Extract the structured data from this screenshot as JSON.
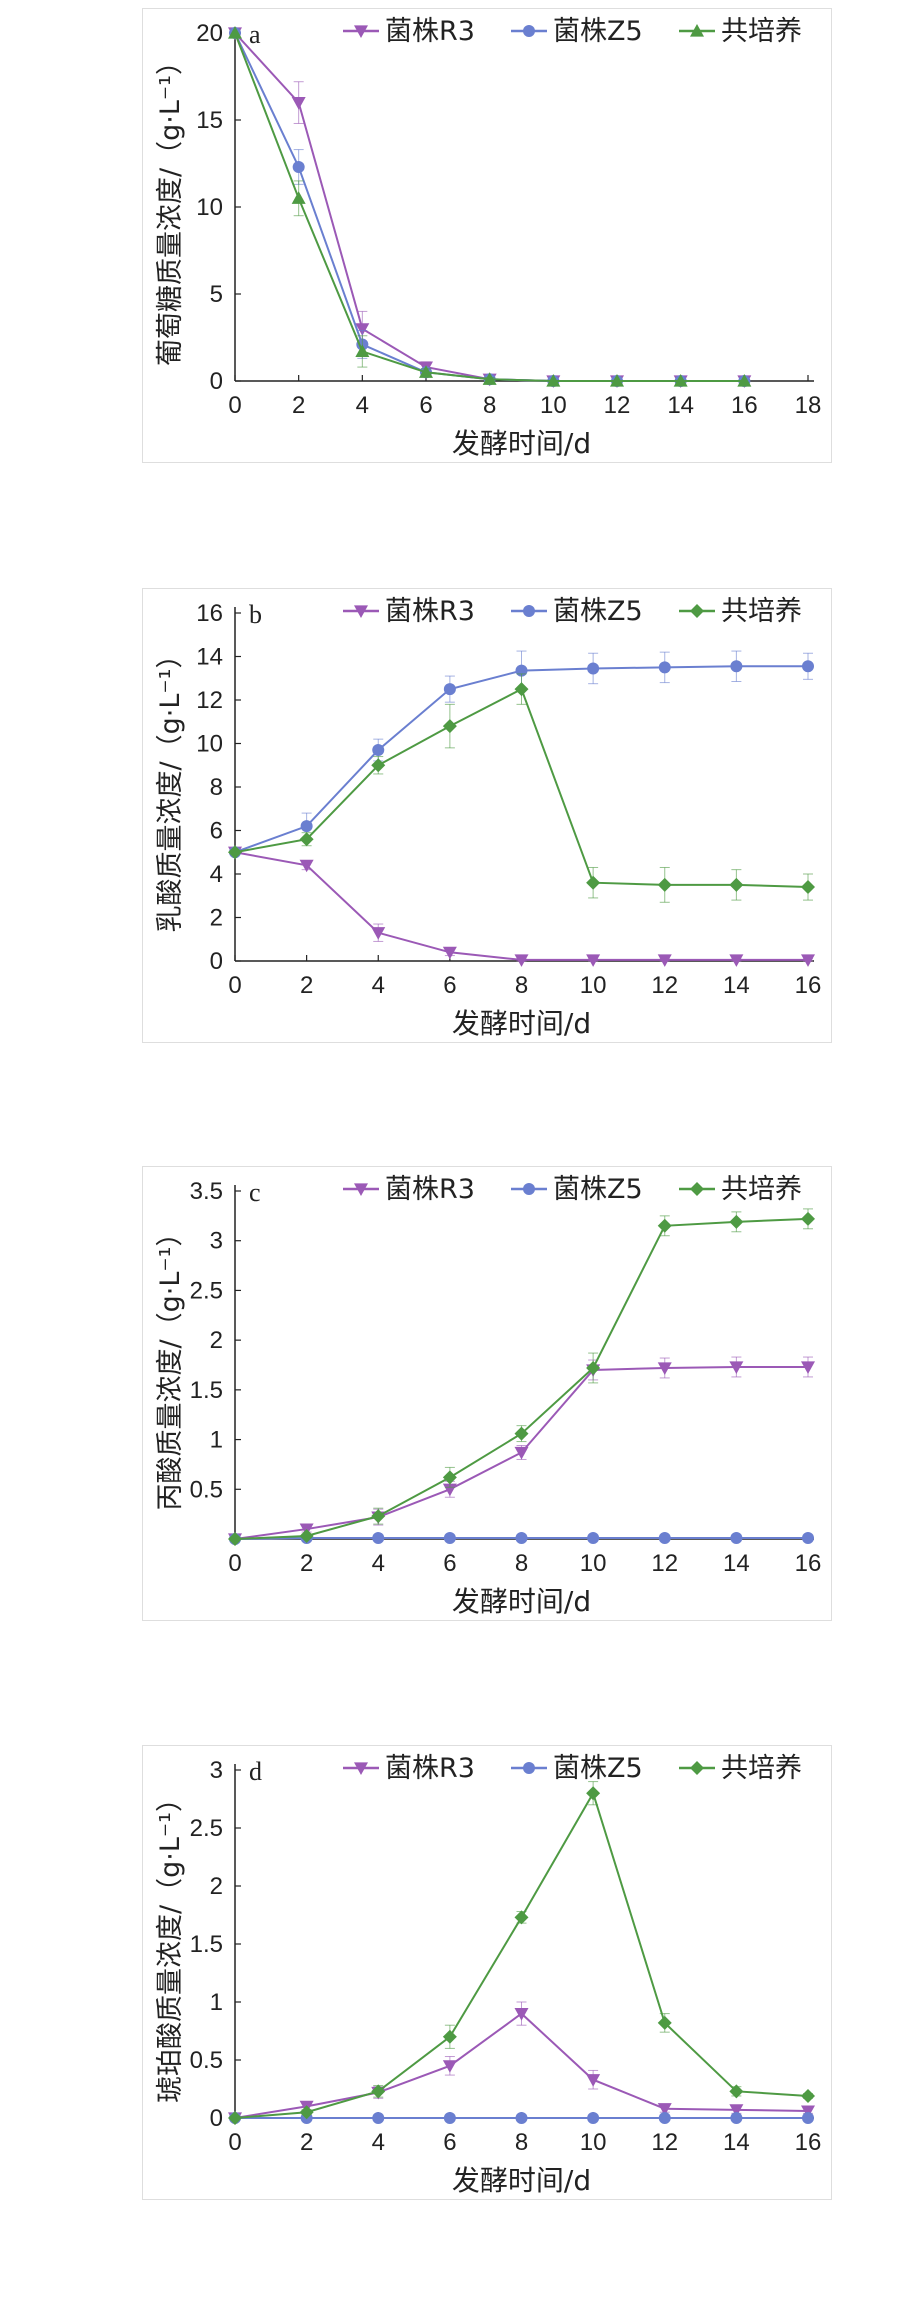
{
  "colors": {
    "R3": "#9b59b6",
    "Z5": "#6a7fd0",
    "co": "#4e9a43"
  },
  "chart_data": [
    {
      "type": "line",
      "panel_label": "a",
      "xlabel": "发酵时间/d",
      "ylabel": "葡萄糖质量浓度/（g·L⁻¹）",
      "xlim": [
        0,
        18
      ],
      "ylim": [
        0,
        20
      ],
      "xticks": [
        0,
        2,
        4,
        6,
        8,
        10,
        12,
        14,
        16,
        18
      ],
      "yticks": [
        0,
        5,
        10,
        15,
        20
      ],
      "legend_position": "top-right",
      "series": [
        {
          "name": "菌株R3",
          "marker": "triangle-down",
          "color": "#9b59b6",
          "x": [
            0,
            2,
            4,
            6,
            8,
            10,
            12,
            14,
            16
          ],
          "y": [
            20,
            16.0,
            3.0,
            0.8,
            0.1,
            0,
            0,
            0,
            0
          ],
          "err": [
            0,
            1.2,
            1.0,
            0.3,
            0.1,
            0,
            0,
            0,
            0
          ]
        },
        {
          "name": "菌株Z5",
          "marker": "circle",
          "color": "#6a7fd0",
          "x": [
            0,
            2,
            4,
            6,
            8,
            10,
            12,
            14,
            16
          ],
          "y": [
            20,
            12.3,
            2.1,
            0.5,
            0.1,
            0,
            0,
            0,
            0
          ],
          "err": [
            0,
            1.0,
            0.8,
            0.2,
            0.1,
            0,
            0,
            0,
            0
          ]
        },
        {
          "name": "共培养",
          "marker": "triangle-up",
          "color": "#4e9a43",
          "x": [
            0,
            2,
            4,
            6,
            8,
            10,
            12,
            14,
            16
          ],
          "y": [
            20,
            10.5,
            1.7,
            0.5,
            0.1,
            0,
            0,
            0,
            0
          ],
          "err": [
            0,
            1.0,
            0.9,
            0.2,
            0.1,
            0,
            0,
            0,
            0
          ]
        }
      ]
    },
    {
      "type": "line",
      "panel_label": "b",
      "xlabel": "发酵时间/d",
      "ylabel": "乳酸质量浓度/（g·L⁻¹）",
      "xlim": [
        0,
        16
      ],
      "ylim": [
        0,
        16
      ],
      "xticks": [
        0,
        2,
        4,
        6,
        8,
        10,
        12,
        14,
        16
      ],
      "yticks": [
        0,
        2,
        4,
        6,
        8,
        10,
        12,
        14,
        16
      ],
      "legend_position": "top-right",
      "series": [
        {
          "name": "菌株R3",
          "marker": "triangle-down",
          "color": "#9b59b6",
          "x": [
            0,
            2,
            4,
            6,
            8,
            10,
            12,
            14,
            16
          ],
          "y": [
            5.0,
            4.4,
            1.3,
            0.4,
            0.05,
            0.05,
            0.05,
            0.05,
            0.05
          ],
          "err": [
            0,
            0.2,
            0.4,
            0.15,
            0.05,
            0.05,
            0.05,
            0.05,
            0.05
          ]
        },
        {
          "name": "菌株Z5",
          "marker": "circle",
          "color": "#6a7fd0",
          "x": [
            0,
            2,
            4,
            6,
            8,
            10,
            12,
            14,
            16
          ],
          "y": [
            5.0,
            6.2,
            9.7,
            12.5,
            13.35,
            13.45,
            13.5,
            13.55,
            13.55
          ],
          "err": [
            0,
            0.6,
            0.5,
            0.6,
            0.9,
            0.7,
            0.7,
            0.7,
            0.6
          ]
        },
        {
          "name": "共培养",
          "marker": "diamond",
          "color": "#4e9a43",
          "x": [
            0,
            2,
            4,
            6,
            8,
            10,
            12,
            14,
            16
          ],
          "y": [
            5.0,
            5.6,
            9.0,
            10.8,
            12.5,
            3.6,
            3.5,
            3.5,
            3.4
          ],
          "err": [
            0,
            0.3,
            0.4,
            1.0,
            0.7,
            0.7,
            0.8,
            0.7,
            0.6
          ]
        }
      ]
    },
    {
      "type": "line",
      "panel_label": "c",
      "xlabel": "发酵时间/d",
      "ylabel": "丙酸质量浓度/（g·L⁻¹）",
      "xlim": [
        0,
        16
      ],
      "ylim": [
        0,
        3.5
      ],
      "xticks": [
        0,
        2,
        4,
        6,
        8,
        10,
        12,
        14,
        16
      ],
      "yticks": [
        0.5,
        1.0,
        1.5,
        2.0,
        2.5,
        3.0,
        3.5
      ],
      "legend_position": "top-right",
      "series": [
        {
          "name": "菌株R3",
          "marker": "triangle-down",
          "color": "#9b59b6",
          "x": [
            0,
            2,
            4,
            6,
            8,
            10,
            12,
            14,
            16
          ],
          "y": [
            0,
            0.1,
            0.22,
            0.5,
            0.87,
            1.7,
            1.72,
            1.73,
            1.73
          ],
          "err": [
            0,
            0.03,
            0.08,
            0.08,
            0.07,
            0.1,
            0.1,
            0.1,
            0.1
          ]
        },
        {
          "name": "菌株Z5",
          "marker": "circle",
          "color": "#6a7fd0",
          "x": [
            0,
            2,
            4,
            6,
            8,
            10,
            12,
            14,
            16
          ],
          "y": [
            0,
            0.01,
            0.01,
            0.01,
            0.01,
            0.01,
            0.01,
            0.01,
            0.01
          ],
          "err": [
            0,
            0,
            0,
            0,
            0,
            0,
            0,
            0,
            0
          ]
        },
        {
          "name": "共培养",
          "marker": "diamond",
          "color": "#4e9a43",
          "x": [
            0,
            2,
            4,
            6,
            8,
            10,
            12,
            14,
            16
          ],
          "y": [
            0,
            0.03,
            0.23,
            0.62,
            1.06,
            1.72,
            3.15,
            3.19,
            3.22
          ],
          "err": [
            0,
            0.02,
            0.08,
            0.1,
            0.08,
            0.15,
            0.1,
            0.1,
            0.1
          ]
        }
      ]
    },
    {
      "type": "line",
      "panel_label": "d",
      "xlabel": "发酵时间/d",
      "ylabel": "琥珀酸质量浓度/（g·L⁻¹）",
      "xlim": [
        0,
        16
      ],
      "ylim": [
        0,
        3.0
      ],
      "xticks": [
        0,
        2,
        4,
        6,
        8,
        10,
        12,
        14,
        16
      ],
      "yticks": [
        0,
        0.5,
        1.0,
        1.5,
        2.0,
        2.5,
        3.0
      ],
      "legend_position": "top-right",
      "series": [
        {
          "name": "菌株R3",
          "marker": "triangle-down",
          "color": "#9b59b6",
          "x": [
            0,
            2,
            4,
            6,
            8,
            10,
            12,
            14,
            16
          ],
          "y": [
            0,
            0.1,
            0.22,
            0.45,
            0.9,
            0.33,
            0.08,
            0.07,
            0.06
          ],
          "err": [
            0,
            0.03,
            0.05,
            0.08,
            0.1,
            0.08,
            0.03,
            0.03,
            0.02
          ]
        },
        {
          "name": "菌株Z5",
          "marker": "circle",
          "color": "#6a7fd0",
          "x": [
            0,
            2,
            4,
            6,
            8,
            10,
            12,
            14,
            16
          ],
          "y": [
            0,
            0,
            0,
            0,
            0,
            0,
            0,
            0,
            0
          ],
          "err": [
            0,
            0,
            0,
            0,
            0,
            0,
            0,
            0,
            0
          ]
        },
        {
          "name": "共培养",
          "marker": "diamond",
          "color": "#4e9a43",
          "x": [
            0,
            2,
            4,
            6,
            8,
            10,
            12,
            14,
            16
          ],
          "y": [
            0,
            0.05,
            0.23,
            0.7,
            1.73,
            2.8,
            0.82,
            0.23,
            0.19
          ],
          "err": [
            0,
            0.02,
            0.05,
            0.1,
            0.05,
            0.1,
            0.08,
            0.04,
            0.02
          ]
        }
      ]
    }
  ]
}
